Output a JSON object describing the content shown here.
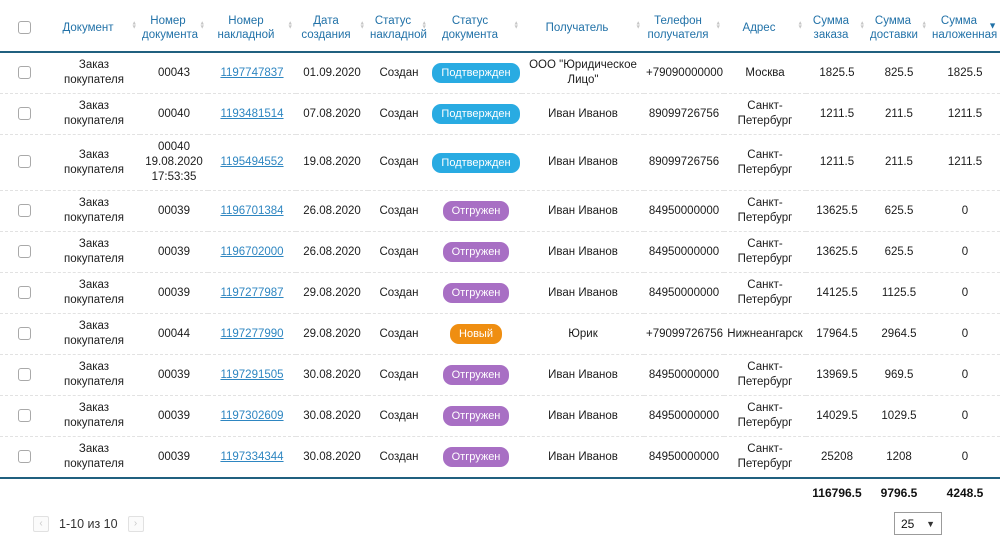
{
  "colors": {
    "header_text": "#2272a8",
    "accent_line": "#20607f",
    "link": "#2e86c1",
    "badge_confirmed": "#29abe2",
    "badge_shipped": "#a86fc4",
    "badge_new": "#ef8e11"
  },
  "table": {
    "columns": [
      {
        "label": "Документ",
        "sort": "none"
      },
      {
        "label": "Номер документа",
        "sort": "none"
      },
      {
        "label": "Номер накладной",
        "sort": "none"
      },
      {
        "label": "Дата создания",
        "sort": "none"
      },
      {
        "label": "Статус накладной",
        "sort": "none"
      },
      {
        "label": "Статус документа",
        "sort": "none"
      },
      {
        "label": "Получатель",
        "sort": "none"
      },
      {
        "label": "Телефон получателя",
        "sort": "none"
      },
      {
        "label": "Адрес",
        "sort": "none"
      },
      {
        "label": "Сумма заказа",
        "sort": "none"
      },
      {
        "label": "Сумма доставки",
        "sort": "none"
      },
      {
        "label": "Сумма наложенная",
        "sort": "desc"
      }
    ],
    "rows": [
      {
        "document": "Заказ\nпокупателя",
        "doc_number": "00043",
        "invoice_number": "1197747837",
        "created": "01.09.2020",
        "invoice_status": "Создан",
        "doc_status": "Подтвержден",
        "doc_status_type": "confirmed",
        "recipient": "ООО \"Юридическое Лицо\"",
        "phone": "+79090000000",
        "address": "Москва",
        "order_sum": "1825.5",
        "delivery_sum": "825.5",
        "cod_sum": "1825.5"
      },
      {
        "document": "Заказ\nпокупателя",
        "doc_number": "00040",
        "invoice_number": "1193481514",
        "created": "07.08.2020",
        "invoice_status": "Создан",
        "doc_status": "Подтвержден",
        "doc_status_type": "confirmed",
        "recipient": "Иван Иванов",
        "phone": "89099726756",
        "address": "Санкт-Петербург",
        "order_sum": "1211.5",
        "delivery_sum": "211.5",
        "cod_sum": "1211.5"
      },
      {
        "document": "Заказ\nпокупателя",
        "doc_number": "00040\n19.08.2020\n17:53:35",
        "invoice_number": "1195494552",
        "created": "19.08.2020",
        "invoice_status": "Создан",
        "doc_status": "Подтвержден",
        "doc_status_type": "confirmed",
        "recipient": "Иван Иванов",
        "phone": "89099726756",
        "address": "Санкт-Петербург",
        "order_sum": "1211.5",
        "delivery_sum": "211.5",
        "cod_sum": "1211.5"
      },
      {
        "document": "Заказ\nпокупателя",
        "doc_number": "00039",
        "invoice_number": "1196701384",
        "created": "26.08.2020",
        "invoice_status": "Создан",
        "doc_status": "Отгружен",
        "doc_status_type": "shipped",
        "recipient": "Иван Иванов",
        "phone": "84950000000",
        "address": "Санкт-Петербург",
        "order_sum": "13625.5",
        "delivery_sum": "625.5",
        "cod_sum": "0"
      },
      {
        "document": "Заказ\nпокупателя",
        "doc_number": "00039",
        "invoice_number": "1196702000",
        "created": "26.08.2020",
        "invoice_status": "Создан",
        "doc_status": "Отгружен",
        "doc_status_type": "shipped",
        "recipient": "Иван Иванов",
        "phone": "84950000000",
        "address": "Санкт-Петербург",
        "order_sum": "13625.5",
        "delivery_sum": "625.5",
        "cod_sum": "0"
      },
      {
        "document": "Заказ\nпокупателя",
        "doc_number": "00039",
        "invoice_number": "1197277987",
        "created": "29.08.2020",
        "invoice_status": "Создан",
        "doc_status": "Отгружен",
        "doc_status_type": "shipped",
        "recipient": "Иван Иванов",
        "phone": "84950000000",
        "address": "Санкт-Петербург",
        "order_sum": "14125.5",
        "delivery_sum": "1125.5",
        "cod_sum": "0"
      },
      {
        "document": "Заказ\nпокупателя",
        "doc_number": "00044",
        "invoice_number": "1197277990",
        "created": "29.08.2020",
        "invoice_status": "Создан",
        "doc_status": "Новый",
        "doc_status_type": "new",
        "recipient": "Юрик",
        "phone": "+79099726756",
        "address": "Нижнеангарск",
        "order_sum": "17964.5",
        "delivery_sum": "2964.5",
        "cod_sum": "0"
      },
      {
        "document": "Заказ\nпокупателя",
        "doc_number": "00039",
        "invoice_number": "1197291505",
        "created": "30.08.2020",
        "invoice_status": "Создан",
        "doc_status": "Отгружен",
        "doc_status_type": "shipped",
        "recipient": "Иван Иванов",
        "phone": "84950000000",
        "address": "Санкт-Петербург",
        "order_sum": "13969.5",
        "delivery_sum": "969.5",
        "cod_sum": "0"
      },
      {
        "document": "Заказ\nпокупателя",
        "doc_number": "00039",
        "invoice_number": "1197302609",
        "created": "30.08.2020",
        "invoice_status": "Создан",
        "doc_status": "Отгружен",
        "doc_status_type": "shipped",
        "recipient": "Иван Иванов",
        "phone": "84950000000",
        "address": "Санкт-Петербург",
        "order_sum": "14029.5",
        "delivery_sum": "1029.5",
        "cod_sum": "0"
      },
      {
        "document": "Заказ\nпокупателя",
        "doc_number": "00039",
        "invoice_number": "1197334344",
        "created": "30.08.2020",
        "invoice_status": "Создан",
        "doc_status": "Отгружен",
        "doc_status_type": "shipped",
        "recipient": "Иван Иванов",
        "phone": "84950000000",
        "address": "Санкт-Петербург",
        "order_sum": "25208",
        "delivery_sum": "1208",
        "cod_sum": "0"
      }
    ],
    "totals": {
      "order_sum": "116796.5",
      "delivery_sum": "9796.5",
      "cod_sum": "4248.5"
    }
  },
  "pagination": {
    "prev_icon": "‹",
    "next_icon": "›",
    "range_label": "1-10 из 10",
    "page_size": "25",
    "caret_icon": "▼"
  }
}
